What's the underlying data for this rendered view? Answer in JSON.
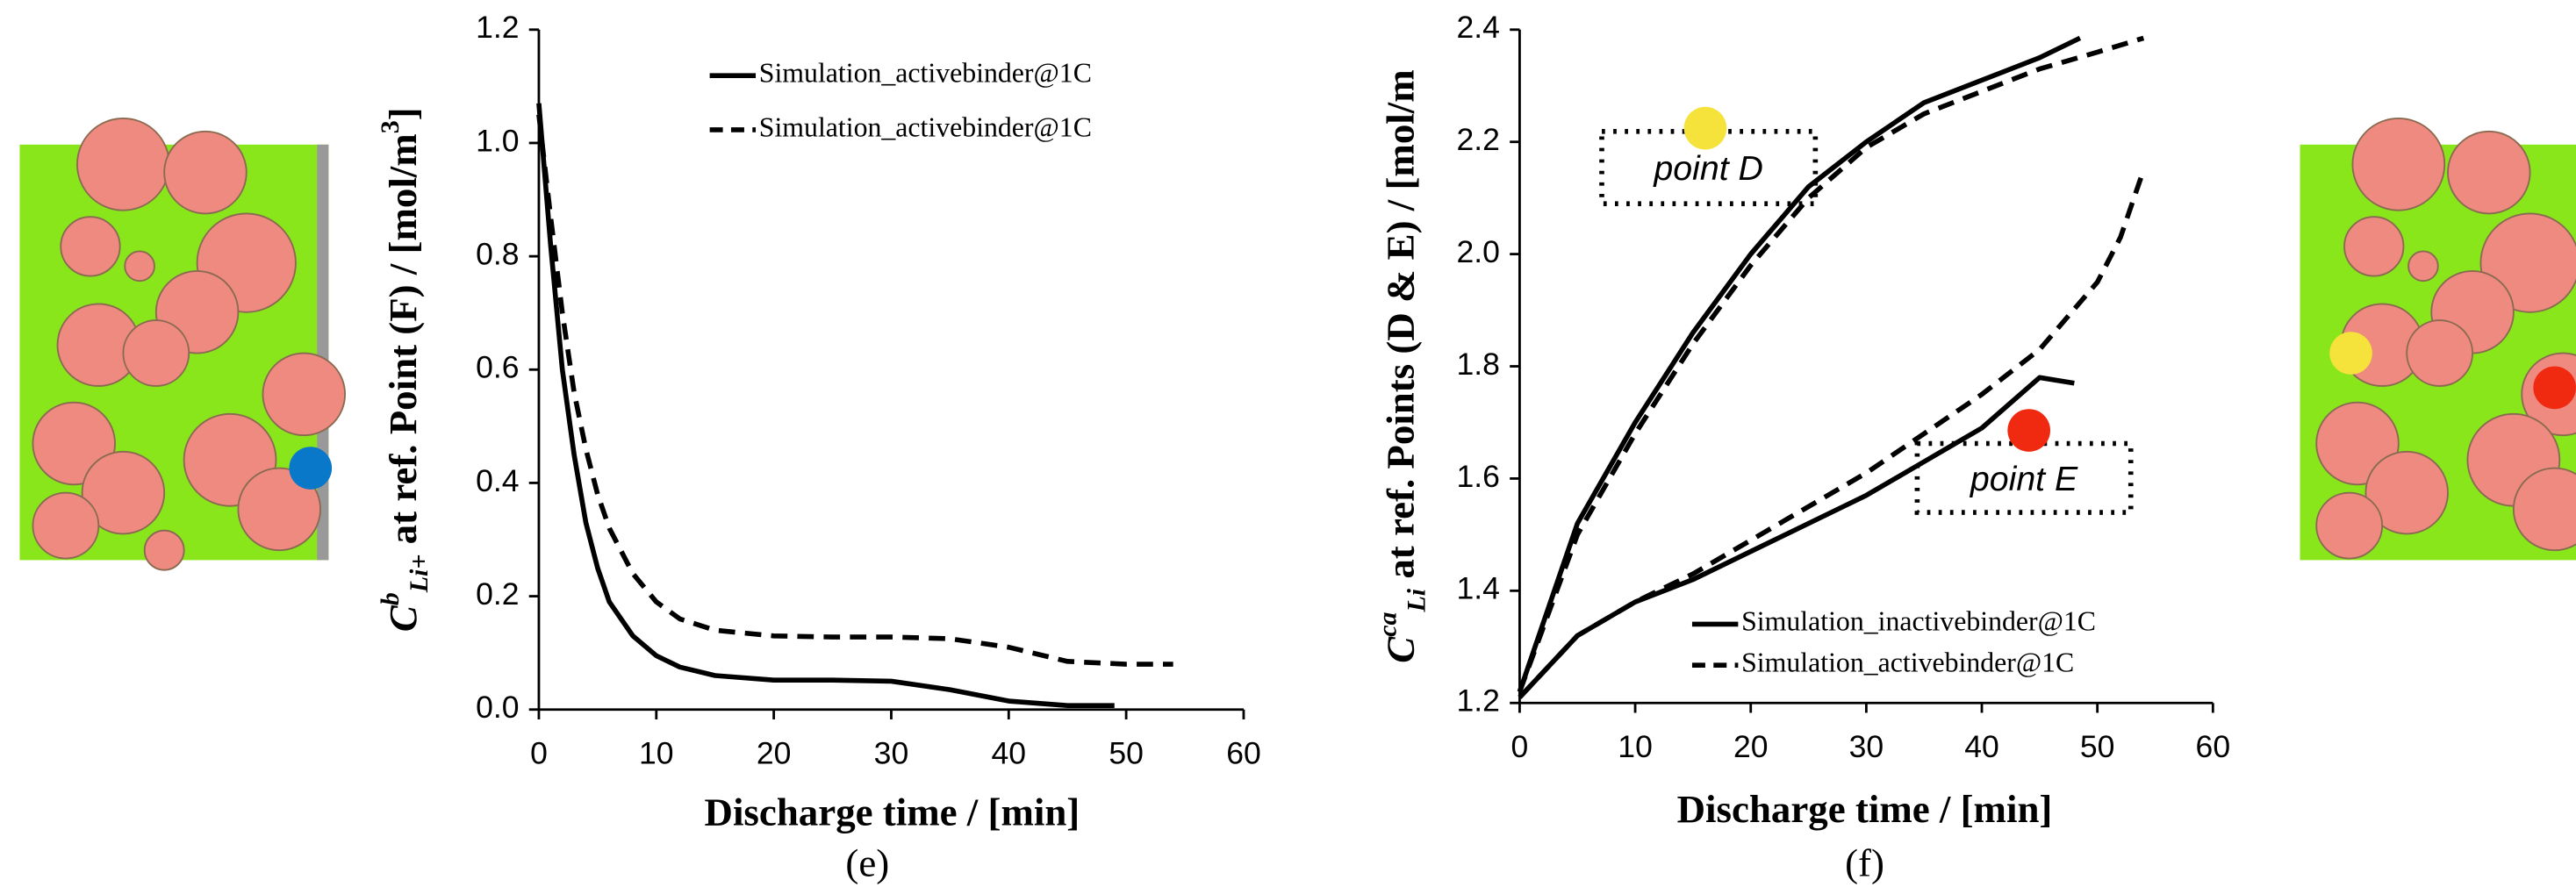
{
  "chart_data": [
    {
      "type": "line",
      "caption": "(e)",
      "xlabel": "Discharge time / [min]",
      "ylabel": {
        "symbol": "C",
        "sup": "b",
        "sub": "Li+",
        "text": " at ref. Point (F) / [mol/m",
        "unit_sup": "3",
        "end": "]"
      },
      "xlim": [
        0,
        60
      ],
      "xticks": [
        0,
        10,
        20,
        30,
        40,
        50,
        60
      ],
      "ylim": [
        0,
        1.2
      ],
      "yticks": [
        {
          "value": 0,
          "label": "0.0"
        },
        0.2,
        0.4,
        0.6,
        0.8,
        {
          "value": 1,
          "label": "1.0"
        },
        1.2
      ],
      "series": [
        {
          "name": "Simulation_activebinder@1C",
          "color": "#000000",
          "dash": false,
          "curves": [
            {
              "x": [
                0,
                1,
                2,
                3,
                4,
                5,
                6,
                8,
                10,
                12,
                15,
                20,
                25,
                30,
                35,
                40,
                45,
                49
              ],
              "values": [
                1.07,
                0.82,
                0.6,
                0.45,
                0.33,
                0.25,
                0.19,
                0.13,
                0.095,
                0.075,
                0.06,
                0.052,
                0.052,
                0.05,
                0.035,
                0.015,
                0.007,
                0.007
              ]
            }
          ]
        },
        {
          "name": "Simulation_activebinder@1C",
          "color": "#000000",
          "dash": true,
          "curves": [
            {
              "x": [
                0,
                1,
                2,
                3,
                4,
                5,
                6,
                8,
                10,
                12,
                15,
                20,
                25,
                30,
                35,
                40,
                45,
                50,
                54
              ],
              "values": [
                1.05,
                0.87,
                0.7,
                0.56,
                0.46,
                0.38,
                0.32,
                0.24,
                0.19,
                0.16,
                0.14,
                0.13,
                0.128,
                0.128,
                0.125,
                0.11,
                0.085,
                0.08,
                0.08
              ]
            }
          ]
        }
      ]
    },
    {
      "type": "line",
      "caption": "(f)",
      "xlabel": "Discharge time / [min]",
      "ylabel": {
        "symbol": "C",
        "sup": "ca",
        "sub": "Li",
        "text": " at ref. Points (D & E) / [mol/m"
      },
      "xlim": [
        0,
        60
      ],
      "xticks": [
        0,
        10,
        20,
        30,
        40,
        50,
        60
      ],
      "ylim": [
        1.2,
        2.4
      ],
      "yticks": [
        1.2,
        1.4,
        1.6,
        1.8,
        {
          "value": 2,
          "label": "2.0"
        },
        2.2,
        2.4
      ],
      "annotations": [
        {
          "text": "point D"
        },
        {
          "text": "point E"
        }
      ],
      "series": [
        {
          "name": "Simulation_inactivebinder@1C",
          "color": "#000000",
          "dash": false,
          "curves": [
            {
              "x": [
                0,
                5,
                10,
                15,
                20,
                25,
                30,
                35,
                40,
                45,
                48.5
              ],
              "values": [
                1.22,
                1.52,
                1.7,
                1.86,
                2.0,
                2.12,
                2.2,
                2.27,
                2.31,
                2.35,
                2.385
              ]
            },
            {
              "x": [
                0,
                5,
                10,
                15,
                20,
                25,
                30,
                35,
                40,
                45,
                48
              ],
              "values": [
                1.21,
                1.32,
                1.38,
                1.42,
                1.47,
                1.52,
                1.57,
                1.63,
                1.69,
                1.78,
                1.77
              ]
            }
          ]
        },
        {
          "name": "Simulation_activebinder@1C",
          "color": "#000000",
          "dash": true,
          "curves": [
            {
              "x": [
                0,
                5,
                10,
                15,
                20,
                25,
                30,
                35,
                40,
                45,
                50,
                54
              ],
              "values": [
                1.22,
                1.5,
                1.68,
                1.84,
                1.98,
                2.1,
                2.19,
                2.25,
                2.29,
                2.33,
                2.36,
                2.385
              ]
            },
            {
              "x": [
                0,
                5,
                10,
                15,
                20,
                25,
                30,
                35,
                40,
                45,
                50,
                52,
                54
              ],
              "values": [
                1.21,
                1.32,
                1.38,
                1.43,
                1.49,
                1.55,
                1.61,
                1.68,
                1.75,
                1.83,
                1.95,
                2.03,
                2.15
              ]
            }
          ]
        }
      ]
    }
  ]
}
